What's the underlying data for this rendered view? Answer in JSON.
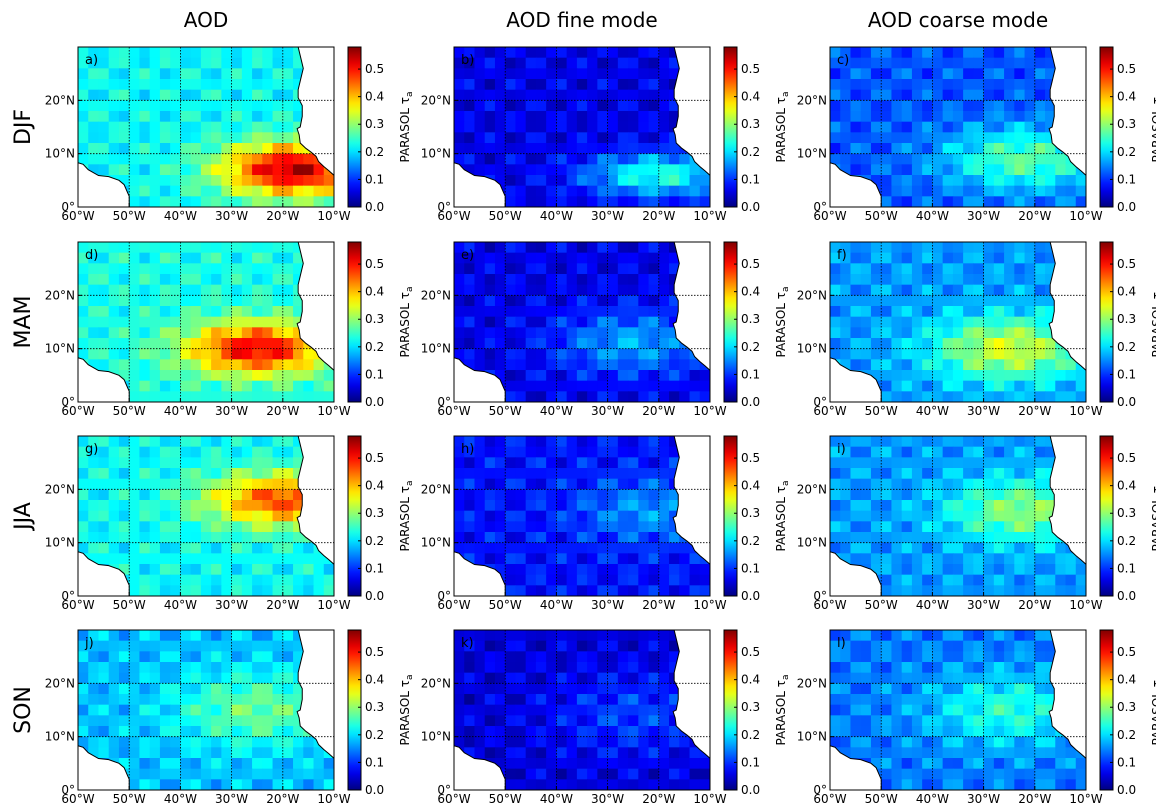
{
  "columns": [
    "AOD",
    "AOD fine mode",
    "AOD coarse mode"
  ],
  "rows": [
    "DJF",
    "MAM",
    "JJA",
    "SON"
  ],
  "panel_labels": [
    "a)",
    "b)",
    "c)",
    "d)",
    "e)",
    "f)",
    "g)",
    "h)",
    "i)",
    "j)",
    "k)",
    "l)"
  ],
  "colorbar": {
    "label": "PARASOL τ",
    "label_subscript": "a",
    "ticks": [
      "0.0",
      "0.1",
      "0.2",
      "0.3",
      "0.4",
      "0.5"
    ],
    "range": [
      0,
      0.58
    ]
  },
  "x_ticks": [
    "60°W",
    "50°W",
    "40°W",
    "30°W",
    "20°W",
    "10°W"
  ],
  "y_ticks": [
    "0°",
    "10°N",
    "20°N"
  ],
  "chart_data": {
    "type": "heatmap",
    "colormap": "jet",
    "x_range_lon": [
      -60,
      -10
    ],
    "y_range_lat": [
      0,
      30
    ],
    "grid": true,
    "row_names": [
      "DJF",
      "MAM",
      "JJA",
      "SON"
    ],
    "column_names": [
      "AOD",
      "AOD fine mode",
      "AOD coarse mode"
    ],
    "panels": [
      {
        "label": "a)",
        "background": 0.22,
        "plume": {
          "lon": -18,
          "lat": 7,
          "peak": 0.55,
          "spread_lon": 14,
          "spread_lat": 5
        }
      },
      {
        "label": "b)",
        "background": 0.06,
        "plume": {
          "lon": -20,
          "lat": 6,
          "peak": 0.24,
          "spread_lon": 14,
          "spread_lat": 4
        }
      },
      {
        "label": "c)",
        "background": 0.12,
        "plume": {
          "lon": -22,
          "lat": 9,
          "peak": 0.27,
          "spread_lon": 16,
          "spread_lat": 6
        }
      },
      {
        "label": "d)",
        "background": 0.23,
        "plume": {
          "lon": -25,
          "lat": 10,
          "peak": 0.52,
          "spread_lon": 14,
          "spread_lat": 5
        }
      },
      {
        "label": "e)",
        "background": 0.06,
        "plume": {
          "lon": -25,
          "lat": 11,
          "peak": 0.17,
          "spread_lon": 15,
          "spread_lat": 6
        }
      },
      {
        "label": "f)",
        "background": 0.16,
        "plume": {
          "lon": -25,
          "lat": 10,
          "peak": 0.34,
          "spread_lon": 15,
          "spread_lat": 6
        }
      },
      {
        "label": "g)",
        "background": 0.22,
        "plume": {
          "lon": -20,
          "lat": 18,
          "peak": 0.47,
          "spread_lon": 15,
          "spread_lat": 5
        }
      },
      {
        "label": "h)",
        "background": 0.08,
        "plume": {
          "lon": -22,
          "lat": 16,
          "peak": 0.16,
          "spread_lon": 14,
          "spread_lat": 6
        }
      },
      {
        "label": "i)",
        "background": 0.16,
        "plume": {
          "lon": -22,
          "lat": 16,
          "peak": 0.3,
          "spread_lon": 15,
          "spread_lat": 6
        }
      },
      {
        "label": "j)",
        "background": 0.18,
        "plume": {
          "lon": -25,
          "lat": 15,
          "peak": 0.28,
          "spread_lon": 16,
          "spread_lat": 7
        }
      },
      {
        "label": "k)",
        "background": 0.05,
        "plume": {
          "lon": -25,
          "lat": 14,
          "peak": 0.11,
          "spread_lon": 16,
          "spread_lat": 8
        }
      },
      {
        "label": "l)",
        "background": 0.14,
        "plume": {
          "lon": -25,
          "lat": 15,
          "peak": 0.24,
          "spread_lon": 16,
          "spread_lat": 7
        }
      }
    ]
  }
}
